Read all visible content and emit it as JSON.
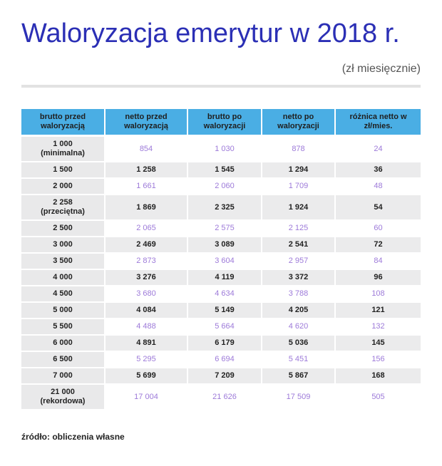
{
  "title": "Waloryzacja emerytur w 2018 r.",
  "subtitle": "(zł miesięcznie)",
  "table": {
    "headers": [
      "brutto przed waloryzacją",
      "netto przed waloryzacją",
      "brutto po waloryzacji",
      "netto po waloryzacji",
      "różnica netto w zł/mies."
    ],
    "rows": [
      {
        "brutto_przed": "1 000",
        "note": "(minimalna)",
        "netto_przed": "854",
        "brutto_po": "1 030",
        "netto_po": "878",
        "roznica": "24"
      },
      {
        "brutto_przed": "1 500",
        "note": "",
        "netto_przed": "1 258",
        "brutto_po": "1 545",
        "netto_po": "1 294",
        "roznica": "36"
      },
      {
        "brutto_przed": "2 000",
        "note": "",
        "netto_przed": "1 661",
        "brutto_po": "2 060",
        "netto_po": "1 709",
        "roznica": "48"
      },
      {
        "brutto_przed": "2 258",
        "note": "(przeciętna)",
        "netto_przed": "1 869",
        "brutto_po": "2 325",
        "netto_po": "1 924",
        "roznica": "54"
      },
      {
        "brutto_przed": "2 500",
        "note": "",
        "netto_przed": "2 065",
        "brutto_po": "2 575",
        "netto_po": "2 125",
        "roznica": "60"
      },
      {
        "brutto_przed": "3 000",
        "note": "",
        "netto_przed": "2 469",
        "brutto_po": "3 089",
        "netto_po": "2 541",
        "roznica": "72"
      },
      {
        "brutto_przed": "3 500",
        "note": "",
        "netto_przed": "2 873",
        "brutto_po": "3 604",
        "netto_po": "2 957",
        "roznica": "84"
      },
      {
        "brutto_przed": "4 000",
        "note": "",
        "netto_przed": "3 276",
        "brutto_po": "4 119",
        "netto_po": "3 372",
        "roznica": "96"
      },
      {
        "brutto_przed": "4 500",
        "note": "",
        "netto_przed": "3 680",
        "brutto_po": "4 634",
        "netto_po": "3 788",
        "roznica": "108"
      },
      {
        "brutto_przed": "5 000",
        "note": "",
        "netto_przed": "4 084",
        "brutto_po": "5 149",
        "netto_po": "4 205",
        "roznica": "121"
      },
      {
        "brutto_przed": "5 500",
        "note": "",
        "netto_przed": "4 488",
        "brutto_po": "5 664",
        "netto_po": "4 620",
        "roznica": "132"
      },
      {
        "brutto_przed": "6 000",
        "note": "",
        "netto_przed": "4 891",
        "brutto_po": "6 179",
        "netto_po": "5 036",
        "roznica": "145"
      },
      {
        "brutto_przed": "6 500",
        "note": "",
        "netto_przed": "5 295",
        "brutto_po": "6 694",
        "netto_po": "5 451",
        "roznica": "156"
      },
      {
        "brutto_przed": "7 000",
        "note": "",
        "netto_przed": "5 699",
        "brutto_po": "7 209",
        "netto_po": "5 867",
        "roznica": "168"
      },
      {
        "brutto_przed": "21 000",
        "note": "(rekordowa)",
        "netto_przed": "17 004",
        "brutto_po": "21 626",
        "netto_po": "17 509",
        "roznica": "505"
      }
    ]
  },
  "source": "źródło: obliczenia własne",
  "colors": {
    "title": "#2b2fb5",
    "header_bg": "#4aaee4",
    "accent_text": "#9d7ad9",
    "first_col_bg": "#e9e9ea",
    "stripe_bg": "#ebebec"
  }
}
